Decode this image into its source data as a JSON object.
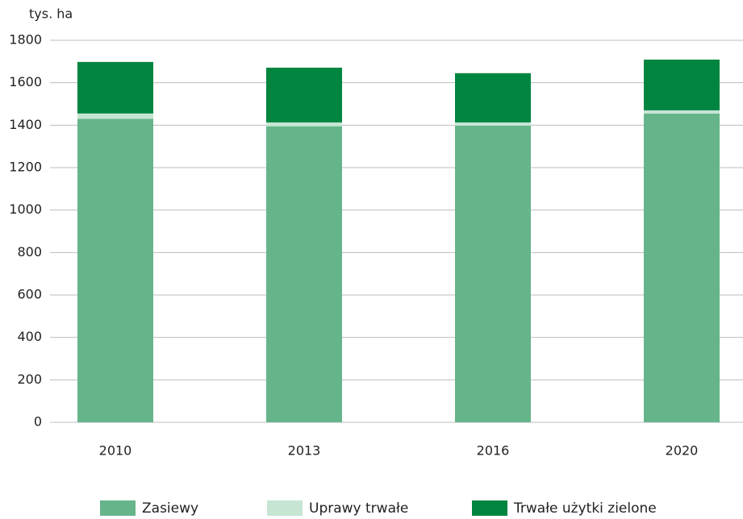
{
  "chart_data": {
    "type": "stacked_bar",
    "y_axis_label": "tys. ha",
    "categories": [
      "2010",
      "2013",
      "2016",
      "2020"
    ],
    "series": [
      {
        "name": "Zasiewy",
        "color": "#66b58a",
        "values": [
          1430,
          1395,
          1398,
          1455
        ]
      },
      {
        "name": "Uprawy trwałe",
        "color": "#c6e5d3",
        "values": [
          25,
          18,
          15,
          15
        ]
      },
      {
        "name": "Trwałe użytki zielone",
        "color": "#008540",
        "values": [
          243,
          258,
          232,
          239
        ]
      }
    ],
    "ylim": [
      0,
      1800
    ],
    "yticks": [
      0,
      200,
      400,
      600,
      800,
      1000,
      1200,
      1400,
      1600,
      1800
    ],
    "grid": true,
    "legend": "bottom"
  }
}
